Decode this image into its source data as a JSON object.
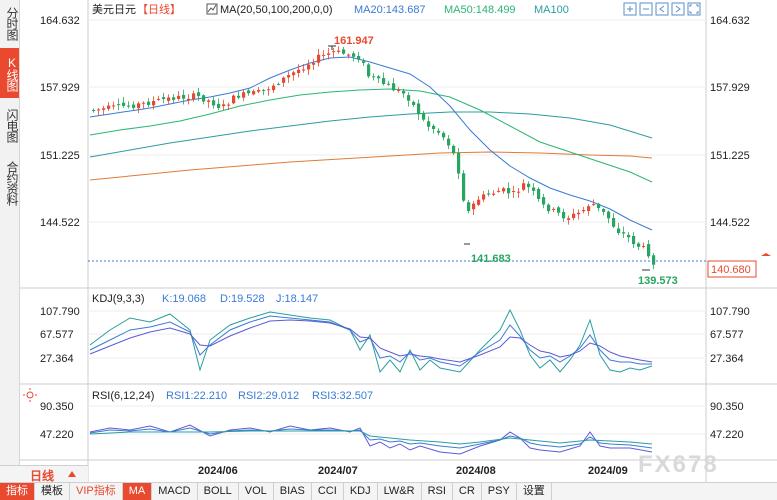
{
  "sidebar": {
    "tabs": [
      {
        "label": "分时图",
        "active": false
      },
      {
        "label": "K线图",
        "active": true
      },
      {
        "label": "闪电图",
        "active": false
      },
      {
        "label": "合约资料",
        "active": false
      }
    ]
  },
  "header": {
    "symbol": "美元日元",
    "period": "【日线】",
    "ma_label": "MA(20,50,100,200,0,0)",
    "ma20": "MA20:143.687",
    "ma50": "MA50:148.499",
    "ma100": "MA100"
  },
  "toolbar": {
    "icons": [
      "zoom-in-icon",
      "zoom-out-icon",
      "move-left-icon",
      "move-right-icon",
      "fullscreen-icon"
    ]
  },
  "price_axis": {
    "ticks": [
      "164.632",
      "157.929",
      "151.225",
      "144.522"
    ]
  },
  "annotations": {
    "high": "161.947",
    "low1": "141.683",
    "low2": "139.573",
    "current": "140.680"
  },
  "kdj": {
    "title": "KDJ(9,3,3)",
    "k": "K:19.068",
    "d": "D:19.528",
    "j": "J:18.147",
    "ticks": [
      "107.790",
      "67.577",
      "27.364"
    ]
  },
  "rsi": {
    "title": "RSI(6,12,24)",
    "rsi1": "RSI1:22.210",
    "rsi2": "RSI2:29.012",
    "rsi3": "RSI3:32.507",
    "ticks": [
      "90.350",
      "47.220"
    ]
  },
  "time_axis": {
    "labels": [
      "2024/06",
      "2024/07",
      "2024/08",
      "2024/09"
    ]
  },
  "watermark": "FX678",
  "bottom": {
    "period_select": "日线",
    "items": [
      "指标",
      "模板",
      "VIP指标",
      "MA",
      "MACD",
      "BOLL",
      "VOL",
      "BIAS",
      "CCI",
      "KDJ",
      "LW&R",
      "RSI",
      "CR",
      "PSY",
      "设置"
    ],
    "active": "MA"
  },
  "colors": {
    "up": "#e8492f",
    "down": "#27a661",
    "ma20": "#3a7bd5",
    "ma50": "#2bb673",
    "ma100": "#2a9da0",
    "ma200": "#e07b39",
    "accent": "#e8492f"
  }
}
